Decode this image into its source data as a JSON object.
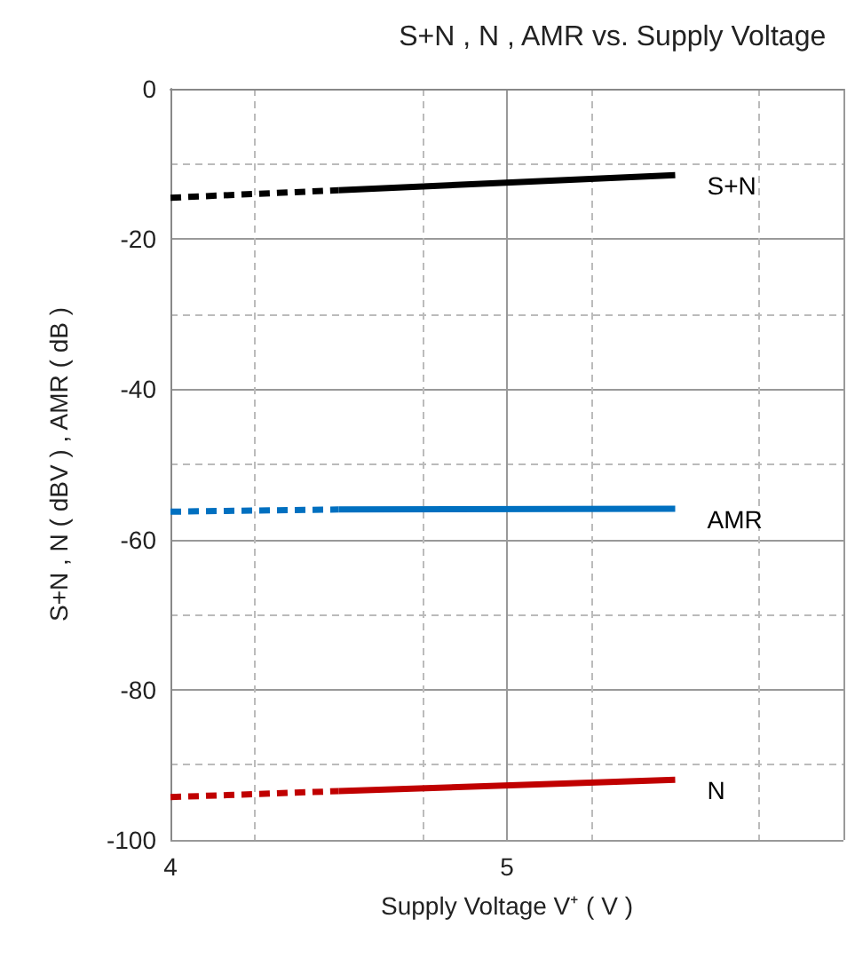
{
  "chart_data": {
    "type": "line",
    "title": "S+N , N , AMR vs. Supply Voltage",
    "xlabel": "Supply Voltage V⁺ ( V )",
    "ylabel": "S+N , N ( dBV ) , AMR ( dB )",
    "xlim": [
      4,
      6
    ],
    "xticks": [
      4,
      5,
      {
        "value": 6,
        "label": null
      }
    ],
    "ylim": [
      -100,
      0
    ],
    "yticks": [
      -100,
      -80,
      -60,
      -40,
      -20,
      0
    ],
    "grid": true,
    "legend": false,
    "marker": "none",
    "series": [
      {
        "x": [
          4,
          4.5
        ],
        "values": [
          -14.5,
          -13.5
        ],
        "color": "#000000",
        "line_style": "dashed"
      },
      {
        "name": "S+N",
        "x": [
          4.5,
          5.5
        ],
        "values": [
          -13.5,
          -11.5
        ],
        "color": "#000000",
        "line_style": "solid"
      },
      {
        "x": [
          4,
          4.5
        ],
        "values": [
          -56.3,
          -56
        ],
        "color": "#0070c0",
        "line_style": "dashed"
      },
      {
        "name": "AMR",
        "x": [
          4.5,
          5.5
        ],
        "values": [
          -56,
          -55.9
        ],
        "color": "#0070c0",
        "line_style": "solid"
      },
      {
        "x": [
          4,
          4.5
        ],
        "values": [
          -94.3,
          -93.5
        ],
        "color": "#c00000",
        "line_style": "dashed"
      },
      {
        "name": "N",
        "x": [
          4.5,
          5.5
        ],
        "values": [
          -93.5,
          -92
        ],
        "color": "#c00000",
        "line_style": "solid"
      }
    ]
  }
}
